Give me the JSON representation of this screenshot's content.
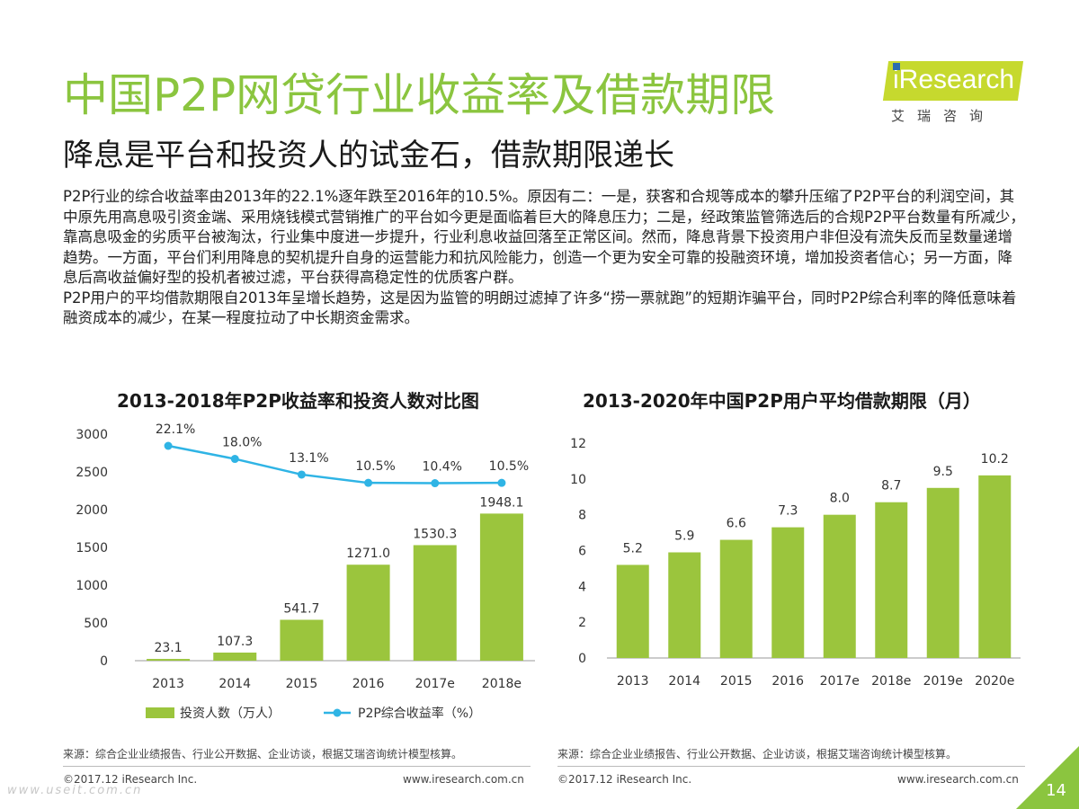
{
  "header": {
    "title": "中国P2P网贷行业收益率及借款期限",
    "subtitle": "降息是平台和投资人的试金石，借款期限递长"
  },
  "logo": {
    "text": "iResearch",
    "cn": "艾瑞咨询"
  },
  "body": {
    "paragraphs": [
      "P2P行业的综合收益率由2013年的22.1%逐年跌至2016年的10.5%。原因有二：一是，获客和合规等成本的攀升压缩了P2P平台的利润空间，其中原先用高息吸引资金端、采用烧钱模式营销推广的平台如今更是面临着巨大的降息压力；二是，经政策监管筛选后的合规P2P平台数量有所减少，靠高息吸金的劣质平台被淘汰，行业集中度进一步提升，行业利息收益回落至正常区间。然而，降息背景下投资用户非但没有流失反而呈数量递增趋势。一方面，平台们利用降息的契机提升自身的运营能力和抗风险能力，创造一个更为安全可靠的投融资环境，增加投资者信心；另一方面，降息后高收益偏好型的投机者被过滤，平台获得高稳定性的优质客户群。",
      "P2P用户的平均借款期限自2013年呈增长趋势，这是因为监管的明朗过滤掉了许多“捞一票就跑”的短期诈骗平台，同时P2P综合利率的降低意味着融资成本的减少，在某一程度拉动了中长期资金需求。"
    ]
  },
  "chart_data": [
    {
      "type": "bar",
      "title": "2013-2018年P2P收益率和投资人数对比图",
      "categories": [
        "2013",
        "2014",
        "2015",
        "2016",
        "2017e",
        "2018e"
      ],
      "series": [
        {
          "name": "投资人数（万人）",
          "type": "bar",
          "values": [
            23.1,
            107.3,
            541.7,
            1271.0,
            1530.3,
            1948.1
          ],
          "labels": [
            "23.1",
            "107.3",
            "541.7",
            "1271.0",
            "1530.3",
            "1948.1"
          ],
          "color": "#9bc53d"
        },
        {
          "name": "P2P综合收益率（%）",
          "type": "line",
          "values": [
            22.1,
            18.0,
            13.1,
            10.5,
            10.4,
            10.5
          ],
          "labels": [
            "22.1%",
            "18.0%",
            "13.1%",
            "10.5%",
            "10.4%",
            "10.5%"
          ],
          "color": "#2fb4e5"
        }
      ],
      "yticks": [
        "3000",
        "2500",
        "2000",
        "1500",
        "1000",
        "500",
        "0"
      ],
      "ylim": [
        0,
        3000
      ],
      "legend": "bottom"
    },
    {
      "type": "bar",
      "title": "2013-2020年中国P2P用户平均借款期限（月）",
      "categories": [
        "2013",
        "2014",
        "2015",
        "2016",
        "2017e",
        "2018e",
        "2019e",
        "2020e"
      ],
      "values": [
        5.2,
        5.9,
        6.6,
        7.3,
        8.0,
        8.7,
        9.5,
        10.2
      ],
      "labels": [
        "5.2",
        "5.9",
        "6.6",
        "7.3",
        "8.0",
        "8.7",
        "9.5",
        "10.2"
      ],
      "yticks": [
        "12",
        "10",
        "8",
        "6",
        "4",
        "2",
        "0"
      ],
      "ylim": [
        0,
        12
      ],
      "color": "#9bc53d"
    }
  ],
  "footer": {
    "source": "来源：综合企业业绩报告、行业公开数据、企业访谈，根据艾瑞咨询统计模型核算。",
    "copyright": "©2017.12 iResearch Inc.",
    "website": "www.iresearch.com.cn",
    "page": "14",
    "watermark": "www.useit.com.cn"
  }
}
